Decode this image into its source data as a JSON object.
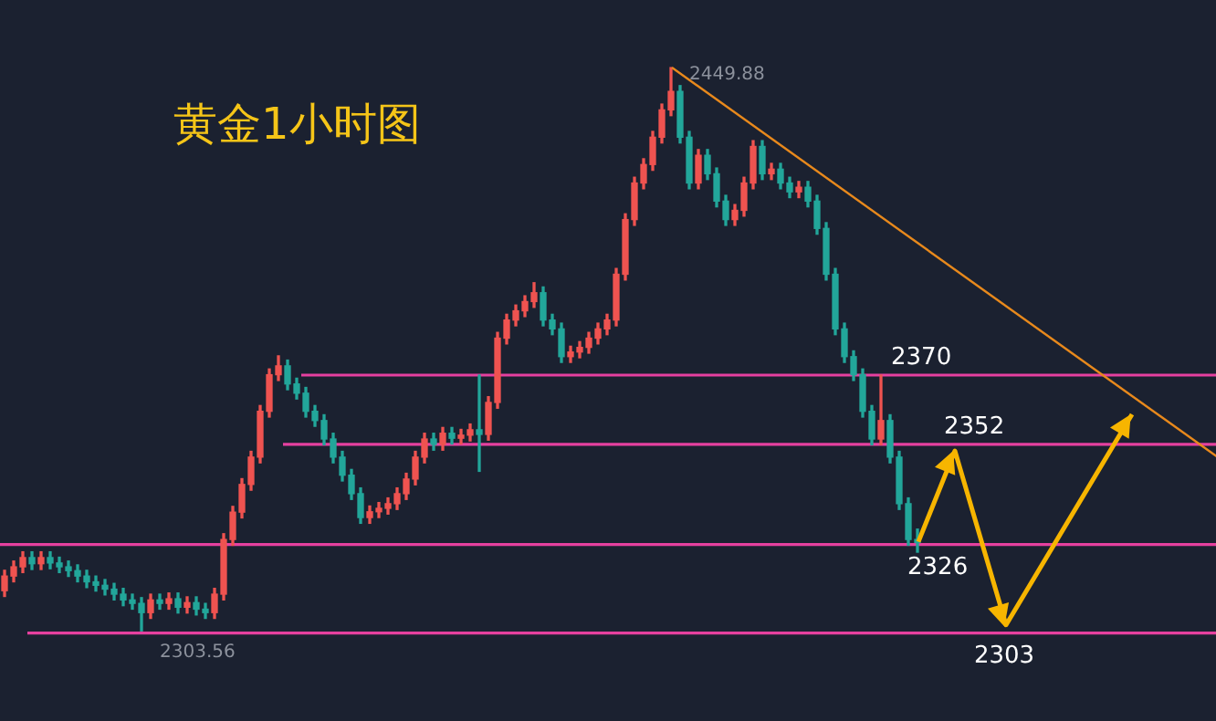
{
  "chart_data": {
    "type": "candlestick",
    "title": "黄金1小时图",
    "categories": [
      null,
      null,
      null,
      null,
      null,
      null,
      null,
      null,
      null,
      null,
      null,
      null,
      null,
      null,
      null,
      null,
      null,
      null,
      null,
      null,
      null,
      null,
      null,
      null,
      null,
      null,
      null,
      null,
      null,
      null,
      null,
      null,
      null,
      null,
      null,
      null,
      null,
      null,
      null,
      null,
      null,
      null,
      null,
      null,
      null,
      null,
      null,
      null,
      null,
      null,
      null,
      null,
      null,
      null,
      null,
      null,
      null,
      null,
      null,
      null,
      null,
      null,
      null,
      null,
      null,
      null,
      null,
      null,
      null,
      null,
      null,
      null,
      null,
      null,
      null,
      null,
      null,
      null,
      null,
      null,
      null,
      null,
      null,
      null,
      null,
      null,
      null,
      null,
      null,
      null,
      null,
      null,
      null,
      null,
      null,
      null,
      null,
      null,
      null,
      null,
      null
    ],
    "ohlc": [
      [
        2314.0,
        2319.3,
        2312.5,
        2317.8
      ],
      [
        2317.8,
        2321.7,
        2316.3,
        2320.2
      ],
      [
        2320.2,
        2324.1,
        2318.7,
        2322.6
      ],
      [
        2322.6,
        2324.1,
        2319.5,
        2321.0
      ],
      [
        2321.0,
        2324.1,
        2319.5,
        2322.6
      ],
      [
        2322.6,
        2324.1,
        2319.7,
        2321.2
      ],
      [
        2321.2,
        2322.7,
        2318.7,
        2320.2
      ],
      [
        2320.2,
        2321.7,
        2317.7,
        2319.2
      ],
      [
        2319.2,
        2320.7,
        2316.3,
        2317.8
      ],
      [
        2317.8,
        2319.3,
        2314.8,
        2316.3
      ],
      [
        2316.3,
        2317.8,
        2313.9,
        2315.4
      ],
      [
        2315.4,
        2316.9,
        2312.9,
        2314.4
      ],
      [
        2314.4,
        2315.9,
        2311.6,
        2313.1
      ],
      [
        2313.1,
        2314.6,
        2310.1,
        2311.6
      ],
      [
        2311.6,
        2313.1,
        2309.2,
        2310.7
      ],
      [
        2310.7,
        2312.2,
        2303.56,
        2308.3
      ],
      [
        2308.3,
        2313.1,
        2306.8,
        2311.6
      ],
      [
        2311.6,
        2313.1,
        2309.2,
        2310.7
      ],
      [
        2310.7,
        2313.4,
        2309.2,
        2311.9
      ],
      [
        2311.9,
        2313.4,
        2308.2,
        2309.7
      ],
      [
        2309.7,
        2312.4,
        2308.2,
        2310.9
      ],
      [
        2310.9,
        2312.4,
        2307.7,
        2309.2
      ],
      [
        2309.2,
        2310.7,
        2306.8,
        2308.3
      ],
      [
        2308.3,
        2314.6,
        2306.8,
        2313.1
      ],
      [
        2313.1,
        2328.8,
        2311.6,
        2327.3
      ],
      [
        2327.3,
        2335.9,
        2325.8,
        2334.4
      ],
      [
        2334.4,
        2343.1,
        2332.9,
        2341.6
      ],
      [
        2341.6,
        2350.2,
        2340.1,
        2348.7
      ],
      [
        2348.7,
        2362.1,
        2347.2,
        2360.6
      ],
      [
        2360.6,
        2371.6,
        2359.1,
        2370.1
      ],
      [
        2370.1,
        2375.0,
        2368.6,
        2372.4
      ],
      [
        2372.4,
        2373.9,
        2366.2,
        2367.7
      ],
      [
        2367.7,
        2369.2,
        2363.8,
        2365.3
      ],
      [
        2365.3,
        2366.8,
        2359.1,
        2360.6
      ],
      [
        2360.6,
        2362.1,
        2356.7,
        2358.2
      ],
      [
        2358.2,
        2359.7,
        2351.9,
        2353.4
      ],
      [
        2353.4,
        2354.9,
        2347.2,
        2348.7
      ],
      [
        2348.7,
        2350.2,
        2342.5,
        2344.0
      ],
      [
        2344.0,
        2345.5,
        2337.7,
        2339.2
      ],
      [
        2339.2,
        2340.7,
        2331.5,
        2333.0
      ],
      [
        2333.0,
        2336.0,
        2331.5,
        2334.5
      ],
      [
        2334.5,
        2336.9,
        2333.0,
        2335.4
      ],
      [
        2335.4,
        2338.1,
        2333.9,
        2336.6
      ],
      [
        2336.6,
        2340.7,
        2335.1,
        2339.2
      ],
      [
        2339.2,
        2344.5,
        2337.7,
        2343.0
      ],
      [
        2343.0,
        2350.2,
        2341.5,
        2348.7
      ],
      [
        2348.7,
        2354.9,
        2347.2,
        2353.4
      ],
      [
        2353.4,
        2354.9,
        2350.5,
        2352.0
      ],
      [
        2352.0,
        2356.4,
        2350.5,
        2354.9
      ],
      [
        2354.9,
        2356.4,
        2352.1,
        2353.6
      ],
      [
        2353.6,
        2355.9,
        2352.1,
        2354.4
      ],
      [
        2354.4,
        2357.3,
        2352.9,
        2355.8
      ],
      [
        2355.8,
        2370.0,
        2345.0,
        2354.6
      ],
      [
        2354.6,
        2364.4,
        2353.1,
        2362.9
      ],
      [
        2362.9,
        2381.1,
        2361.4,
        2379.6
      ],
      [
        2379.6,
        2385.8,
        2378.1,
        2384.3
      ],
      [
        2384.3,
        2388.2,
        2382.8,
        2386.7
      ],
      [
        2386.7,
        2390.6,
        2385.2,
        2389.1
      ],
      [
        2389.1,
        2394.0,
        2387.6,
        2391.4
      ],
      [
        2391.4,
        2392.9,
        2382.8,
        2384.3
      ],
      [
        2384.3,
        2385.8,
        2380.5,
        2382.0
      ],
      [
        2382.0,
        2383.5,
        2373.3,
        2374.8
      ],
      [
        2374.8,
        2377.5,
        2373.3,
        2376.0
      ],
      [
        2376.0,
        2378.7,
        2374.5,
        2377.2
      ],
      [
        2377.2,
        2381.1,
        2375.7,
        2379.6
      ],
      [
        2379.6,
        2383.5,
        2378.1,
        2382.0
      ],
      [
        2382.0,
        2385.8,
        2380.5,
        2384.3
      ],
      [
        2384.3,
        2397.7,
        2382.8,
        2396.2
      ],
      [
        2396.2,
        2411.9,
        2394.7,
        2410.4
      ],
      [
        2410.4,
        2421.4,
        2408.9,
        2419.9
      ],
      [
        2419.9,
        2426.2,
        2418.4,
        2424.7
      ],
      [
        2424.7,
        2433.3,
        2423.2,
        2431.8
      ],
      [
        2431.8,
        2440.4,
        2430.3,
        2438.9
      ],
      [
        2438.9,
        2449.88,
        2437.4,
        2443.7
      ],
      [
        2443.7,
        2445.2,
        2430.3,
        2431.8
      ],
      [
        2431.8,
        2433.3,
        2418.4,
        2419.9
      ],
      [
        2419.9,
        2428.6,
        2418.4,
        2427.1
      ],
      [
        2427.1,
        2428.6,
        2420.8,
        2422.3
      ],
      [
        2422.3,
        2423.8,
        2413.7,
        2415.2
      ],
      [
        2415.2,
        2416.7,
        2408.9,
        2410.4
      ],
      [
        2410.4,
        2414.3,
        2408.9,
        2412.8
      ],
      [
        2412.8,
        2421.4,
        2411.3,
        2419.9
      ],
      [
        2419.9,
        2430.9,
        2418.4,
        2429.4
      ],
      [
        2429.4,
        2430.9,
        2420.8,
        2422.3
      ],
      [
        2422.3,
        2425.0,
        2420.8,
        2423.5
      ],
      [
        2423.5,
        2425.0,
        2418.4,
        2419.9
      ],
      [
        2419.9,
        2421.4,
        2416.1,
        2417.6
      ],
      [
        2417.6,
        2420.3,
        2416.1,
        2418.8
      ],
      [
        2418.8,
        2420.3,
        2413.7,
        2415.2
      ],
      [
        2415.2,
        2416.7,
        2406.6,
        2408.1
      ],
      [
        2408.1,
        2409.6,
        2394.7,
        2396.2
      ],
      [
        2396.2,
        2397.7,
        2380.5,
        2382.0
      ],
      [
        2382.0,
        2383.5,
        2373.3,
        2374.8
      ],
      [
        2374.8,
        2376.3,
        2368.6,
        2370.1
      ],
      [
        2370.1,
        2371.6,
        2359.1,
        2360.6
      ],
      [
        2360.6,
        2362.1,
        2351.9,
        2353.4
      ],
      [
        2353.4,
        2370.0,
        2351.9,
        2358.2
      ],
      [
        2358.2,
        2359.7,
        2347.2,
        2348.7
      ],
      [
        2348.7,
        2350.2,
        2335.1,
        2336.6
      ],
      [
        2336.6,
        2338.1,
        2325.8,
        2327.3
      ],
      [
        2327.3,
        2330.0,
        2324.0,
        2326.5
      ]
    ],
    "ref_lines": [
      {
        "axis": "y",
        "value": 2370,
        "label": "2370",
        "color": "#e6409f"
      },
      {
        "axis": "y",
        "value": 2352,
        "label": "2352",
        "color": "#e6409f"
      },
      {
        "axis": "y",
        "value": 2326,
        "label": "2326",
        "color": "#e6409f"
      },
      {
        "axis": "y",
        "value": 2303,
        "label": "2303",
        "color": "#e6409f"
      }
    ],
    "annotations": [
      "2449.88",
      "2303.56"
    ],
    "tick_labels": false,
    "grid": false
  }
}
